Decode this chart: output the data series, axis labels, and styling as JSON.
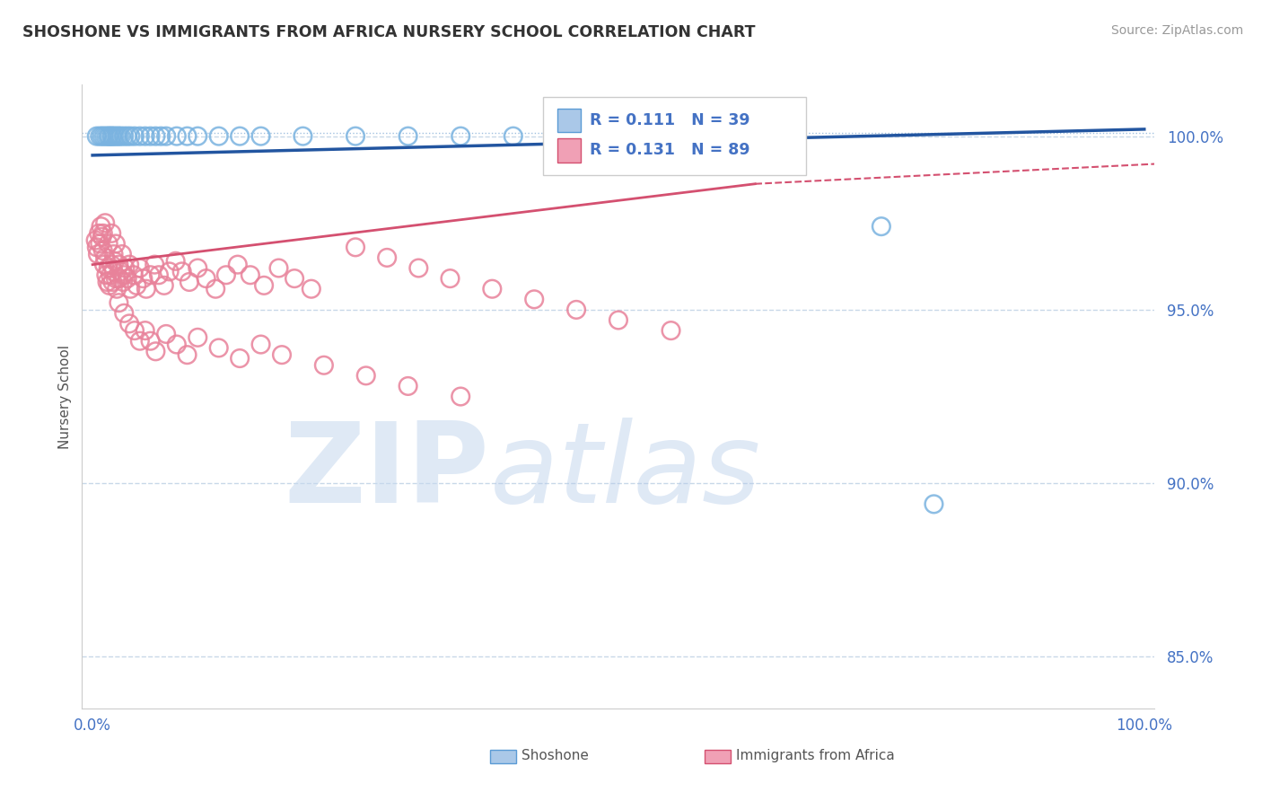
{
  "title": "SHOSHONE VS IMMIGRANTS FROM AFRICA NURSERY SCHOOL CORRELATION CHART",
  "source": "Source: ZipAtlas.com",
  "ylabel": "Nursery School",
  "watermark_zip": "ZIP",
  "watermark_atlas": "atlas",
  "blue_label": "Shoshone",
  "pink_label": "Immigrants from Africa",
  "blue_R": 0.111,
  "blue_N": 39,
  "pink_R": 0.131,
  "pink_N": 89,
  "blue_scatter_color": "#7ab3e0",
  "pink_scatter_color": "#e8829a",
  "blue_line_color": "#2255a0",
  "pink_line_color": "#d45070",
  "blue_dash_color": "#a0c0e0",
  "pink_dash_color": "#e8a0b0",
  "tick_color": "#4472c4",
  "grid_color": "#c8d8e8",
  "bg_color": "#ffffff",
  "blue_scatter_x": [
    0.004,
    0.007,
    0.009,
    0.011,
    0.013,
    0.015,
    0.016,
    0.018,
    0.019,
    0.021,
    0.023,
    0.025,
    0.027,
    0.03,
    0.033,
    0.036,
    0.04,
    0.045,
    0.05,
    0.055,
    0.06,
    0.065,
    0.07,
    0.08,
    0.09,
    0.1,
    0.12,
    0.14,
    0.16,
    0.2,
    0.25,
    0.3,
    0.35,
    0.4,
    0.5,
    0.55,
    0.65,
    0.75,
    0.8
  ],
  "blue_scatter_y": [
    1.0,
    1.0,
    1.0,
    1.0,
    1.0,
    1.0,
    1.0,
    1.0,
    1.0,
    1.0,
    1.0,
    1.0,
    1.0,
    1.0,
    1.0,
    1.0,
    1.0,
    1.0,
    1.0,
    1.0,
    1.0,
    1.0,
    1.0,
    1.0,
    1.0,
    1.0,
    1.0,
    1.0,
    1.0,
    1.0,
    1.0,
    1.0,
    1.0,
    1.0,
    1.0,
    1.0,
    1.0,
    0.974,
    0.894
  ],
  "pink_scatter_x": [
    0.003,
    0.004,
    0.005,
    0.006,
    0.007,
    0.008,
    0.009,
    0.01,
    0.011,
    0.012,
    0.013,
    0.014,
    0.015,
    0.016,
    0.017,
    0.018,
    0.019,
    0.02,
    0.021,
    0.022,
    0.023,
    0.025,
    0.027,
    0.029,
    0.031,
    0.033,
    0.036,
    0.039,
    0.042,
    0.045,
    0.048,
    0.051,
    0.055,
    0.059,
    0.063,
    0.068,
    0.073,
    0.079,
    0.085,
    0.092,
    0.1,
    0.108,
    0.117,
    0.127,
    0.138,
    0.15,
    0.163,
    0.177,
    0.192,
    0.208,
    0.025,
    0.03,
    0.035,
    0.04,
    0.045,
    0.05,
    0.055,
    0.06,
    0.07,
    0.08,
    0.09,
    0.1,
    0.12,
    0.14,
    0.16,
    0.18,
    0.22,
    0.26,
    0.3,
    0.35,
    0.25,
    0.28,
    0.31,
    0.34,
    0.38,
    0.42,
    0.46,
    0.5,
    0.55,
    0.01,
    0.015,
    0.02,
    0.025,
    0.03,
    0.012,
    0.018,
    0.022,
    0.028,
    0.035
  ],
  "pink_scatter_y": [
    0.97,
    0.968,
    0.966,
    0.972,
    0.969,
    0.974,
    0.971,
    0.967,
    0.963,
    0.965,
    0.96,
    0.958,
    0.962,
    0.957,
    0.96,
    0.963,
    0.958,
    0.961,
    0.964,
    0.959,
    0.956,
    0.959,
    0.961,
    0.958,
    0.962,
    0.959,
    0.956,
    0.96,
    0.957,
    0.962,
    0.959,
    0.956,
    0.96,
    0.963,
    0.96,
    0.957,
    0.961,
    0.964,
    0.961,
    0.958,
    0.962,
    0.959,
    0.956,
    0.96,
    0.963,
    0.96,
    0.957,
    0.962,
    0.959,
    0.956,
    0.952,
    0.949,
    0.946,
    0.944,
    0.941,
    0.944,
    0.941,
    0.938,
    0.943,
    0.94,
    0.937,
    0.942,
    0.939,
    0.936,
    0.94,
    0.937,
    0.934,
    0.931,
    0.928,
    0.925,
    0.968,
    0.965,
    0.962,
    0.959,
    0.956,
    0.953,
    0.95,
    0.947,
    0.944,
    0.972,
    0.969,
    0.966,
    0.963,
    0.96,
    0.975,
    0.972,
    0.969,
    0.966,
    0.963
  ],
  "ylim": [
    0.835,
    1.015
  ],
  "xlim": [
    -0.01,
    1.01
  ],
  "yticks": [
    0.85,
    0.9,
    0.95,
    1.0
  ],
  "ytick_labels": [
    "85.0%",
    "90.0%",
    "95.0%",
    "100.0%"
  ],
  "xtick_labels": [
    "0.0%",
    "100.0%"
  ]
}
